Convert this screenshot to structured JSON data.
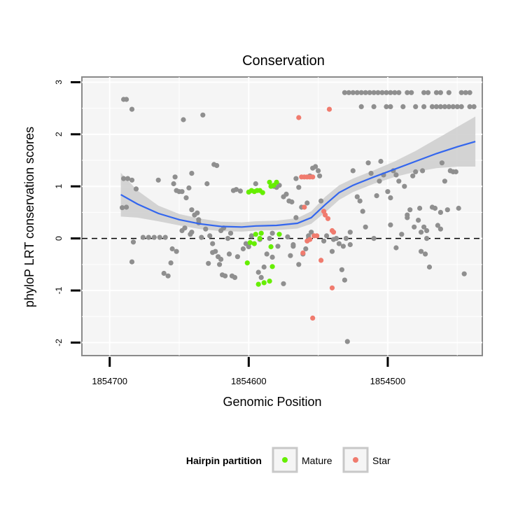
{
  "chart_data": {
    "type": "scatter",
    "title": "Conservation",
    "xlabel": "Genomic Position",
    "ylabel": "phyloP LRT conservation scores",
    "x_reversed": true,
    "xlim": [
      1854720,
      1854432
    ],
    "ylim": [
      -2.25,
      3.1
    ],
    "x_ticks": [
      1854700,
      1854600,
      1854500
    ],
    "y_ticks": [
      -2,
      -1,
      0,
      1,
      2,
      3
    ],
    "reference_line": {
      "y": 0,
      "style": "dashed"
    },
    "grid": true,
    "legend": {
      "title": "Hairpin partition",
      "position": "bottom",
      "entries": [
        {
          "label": "Mature",
          "color": "#66ee00"
        },
        {
          "label": "Star",
          "color": "#f07b6e"
        }
      ]
    },
    "colors": {
      "background": "#f5f5f5",
      "points": "#8f8f8f",
      "smooth": "#3366ee",
      "band": "#cccccc"
    },
    "series": [
      {
        "color": "#8f8f8f",
        "points": [
          [
            1854691,
            0.59
          ],
          [
            1854688,
            0.6
          ],
          [
            1854690,
            1.15
          ],
          [
            1854687,
            1.15
          ],
          [
            1854684,
            1.12
          ],
          [
            1854690,
            2.67
          ],
          [
            1854688,
            2.67
          ],
          [
            1854684,
            2.48
          ],
          [
            1854683,
            -0.07
          ],
          [
            1854684,
            -0.45
          ],
          [
            1854681,
            0.95
          ],
          [
            1854676,
            0.02
          ],
          [
            1854672,
            0.02
          ],
          [
            1854668,
            0.02
          ],
          [
            1854664,
            0.02
          ],
          [
            1854660,
            0.02
          ],
          [
            1854665,
            1.12
          ],
          [
            1854661,
            -0.67
          ],
          [
            1854658,
            -0.72
          ],
          [
            1854654,
            1.05
          ],
          [
            1854653,
            1.18
          ],
          [
            1854652,
            0.92
          ],
          [
            1854650,
            0.9
          ],
          [
            1854648,
            0.9
          ],
          [
            1854656,
            -0.47
          ],
          [
            1854655,
            -0.2
          ],
          [
            1854652,
            -0.25
          ],
          [
            1854648,
            0.15
          ],
          [
            1854646,
            0.2
          ],
          [
            1854645,
            0.78
          ],
          [
            1854643,
            0.97
          ],
          [
            1854641,
            1.25
          ],
          [
            1854641,
            0.55
          ],
          [
            1854639,
            0.45
          ],
          [
            1854637,
            0.49
          ],
          [
            1854636,
            0.36
          ],
          [
            1854647,
            2.28
          ],
          [
            1854641,
            0.12
          ],
          [
            1854642,
            0.08
          ],
          [
            1854636,
            0.3
          ],
          [
            1854633,
            2.37
          ],
          [
            1854630,
            1.05
          ],
          [
            1854628,
            0.05
          ],
          [
            1854626,
            -0.1
          ],
          [
            1854624,
            -0.25
          ],
          [
            1854622,
            -0.35
          ],
          [
            1854621,
            -0.5
          ],
          [
            1854620,
            -0.4
          ],
          [
            1854619,
            -0.7
          ],
          [
            1854617,
            -0.72
          ],
          [
            1854615,
            0.0
          ],
          [
            1854613,
            0.1
          ],
          [
            1854611,
            0.92
          ],
          [
            1854609,
            0.94
          ],
          [
            1854606,
            0.91
          ],
          [
            1854625,
            1.42
          ],
          [
            1854623,
            1.4
          ],
          [
            1854620,
            0.15
          ],
          [
            1854618,
            0.2
          ],
          [
            1854614,
            -0.3
          ],
          [
            1854631,
            0.18
          ],
          [
            1854634,
            0.02
          ],
          [
            1854629,
            -0.48
          ],
          [
            1854626,
            -0.27
          ],
          [
            1854612,
            -0.72
          ],
          [
            1854610,
            -0.75
          ],
          [
            1854608,
            -0.35
          ],
          [
            1854604,
            -0.2
          ],
          [
            1854602,
            -0.1
          ],
          [
            1854598,
            0.05
          ],
          [
            1854595,
            1.05
          ],
          [
            1854593,
            -0.65
          ],
          [
            1854591,
            -0.75
          ],
          [
            1854589,
            -0.55
          ],
          [
            1854587,
            -0.3
          ],
          [
            1854585,
            0.0
          ],
          [
            1854583,
            0.1
          ],
          [
            1854582,
            1.0
          ],
          [
            1854580,
            0.98
          ],
          [
            1854578,
            1.02
          ],
          [
            1854575,
            0.8
          ],
          [
            1854573,
            0.85
          ],
          [
            1854571,
            0.72
          ],
          [
            1854569,
            0.7
          ],
          [
            1854575,
            -0.87
          ],
          [
            1854570,
            -0.33
          ],
          [
            1854568,
            -0.15
          ],
          [
            1854566,
            0.4
          ],
          [
            1854564,
            -0.5
          ],
          [
            1854561,
            -0.3
          ],
          [
            1854559,
            -0.2
          ],
          [
            1854557,
            0.05
          ],
          [
            1854556,
            1.2
          ],
          [
            1854554,
            1.35
          ],
          [
            1854552,
            1.38
          ],
          [
            1854550,
            1.3
          ],
          [
            1854566,
            1.15
          ],
          [
            1854564,
            0.98
          ],
          [
            1854562,
            0.6
          ],
          [
            1854558,
            0.68
          ],
          [
            1854557,
            0.0
          ],
          [
            1854555,
            0.12
          ],
          [
            1854568,
            -0.12
          ],
          [
            1854572,
            0.03
          ],
          [
            1854579,
            -0.15
          ],
          [
            1854583,
            -0.36
          ],
          [
            1854592,
            -0.02
          ],
          [
            1854600,
            -0.16
          ],
          [
            1854549,
            1.2
          ],
          [
            1854548,
            0.72
          ],
          [
            1854546,
            -0.05
          ],
          [
            1854544,
            0.05
          ],
          [
            1854540,
            -0.25
          ],
          [
            1854539,
            -0.02
          ],
          [
            1854537,
            0.0
          ],
          [
            1854535,
            -0.1
          ],
          [
            1854533,
            -0.6
          ],
          [
            1854531,
            -0.8
          ],
          [
            1854530,
            0.0
          ],
          [
            1854529,
            -1.98
          ],
          [
            1854527,
            0.12
          ],
          [
            1854525,
            1.3
          ],
          [
            1854522,
            0.8
          ],
          [
            1854520,
            0.72
          ],
          [
            1854518,
            0.52
          ],
          [
            1854516,
            0.22
          ],
          [
            1854514,
            1.45
          ],
          [
            1854512,
            1.25
          ],
          [
            1854510,
            0.0
          ],
          [
            1854508,
            0.82
          ],
          [
            1854506,
            1.1
          ],
          [
            1854505,
            1.48
          ],
          [
            1854503,
            1.22
          ],
          [
            1854500,
            0.9
          ],
          [
            1854498,
            0.26
          ],
          [
            1854496,
            1.3
          ],
          [
            1854494,
            1.22
          ],
          [
            1854492,
            1.1
          ],
          [
            1854490,
            0.08
          ],
          [
            1854488,
            1.0
          ],
          [
            1854486,
            0.4
          ],
          [
            1854484,
            0.55
          ],
          [
            1854482,
            1.2
          ],
          [
            1854480,
            1.28
          ],
          [
            1854478,
            0.35
          ],
          [
            1854476,
            0.12
          ],
          [
            1854474,
            0.22
          ],
          [
            1854472,
            0.15
          ],
          [
            1854470,
            -0.55
          ],
          [
            1854468,
            0.6
          ],
          [
            1854466,
            0.58
          ],
          [
            1854464,
            0.25
          ],
          [
            1854462,
            0.5
          ],
          [
            1854461,
            1.45
          ],
          [
            1854459,
            1.1
          ],
          [
            1854457,
            0.55
          ],
          [
            1854455,
            1.3
          ],
          [
            1854453,
            1.28
          ],
          [
            1854451,
            1.28
          ],
          [
            1854449,
            0.58
          ],
          [
            1854445,
            -0.68
          ],
          [
            1854527,
            -0.12
          ],
          [
            1854532,
            -0.15
          ],
          [
            1854494,
            -0.18
          ],
          [
            1854476,
            -0.25
          ],
          [
            1854473,
            -0.3
          ],
          [
            1854486,
            0.45
          ],
          [
            1854462,
            0.18
          ],
          [
            1854481,
            0.22
          ],
          [
            1854498,
            0.78
          ],
          [
            1854475,
            1.3
          ],
          [
            1854477,
            0.58
          ],
          [
            1854472,
            0.0
          ],
          [
            1854531,
            2.8
          ],
          [
            1854528,
            2.8
          ],
          [
            1854525,
            2.8
          ],
          [
            1854522,
            2.8
          ],
          [
            1854519,
            2.53
          ],
          [
            1854516,
            2.8
          ],
          [
            1854513,
            2.8
          ],
          [
            1854510,
            2.53
          ],
          [
            1854507,
            2.8
          ],
          [
            1854504,
            2.8
          ],
          [
            1854501,
            2.8
          ],
          [
            1854498,
            2.8
          ],
          [
            1854495,
            2.8
          ],
          [
            1854492,
            2.8
          ],
          [
            1854489,
            2.53
          ],
          [
            1854486,
            2.8
          ],
          [
            1854483,
            2.8
          ],
          [
            1854480,
            2.53
          ],
          [
            1854474,
            2.8
          ],
          [
            1854471,
            2.8
          ],
          [
            1854468,
            2.53
          ],
          [
            1854465,
            2.8
          ],
          [
            1854462,
            2.8
          ],
          [
            1854459,
            2.53
          ],
          [
            1854456,
            2.8
          ],
          [
            1854453,
            2.53
          ],
          [
            1854450,
            2.53
          ],
          [
            1854447,
            2.8
          ],
          [
            1854444,
            2.8
          ],
          [
            1854441,
            2.8
          ],
          [
            1854438,
            2.53
          ],
          [
            1854519,
            2.8
          ],
          [
            1854510,
            2.8
          ],
          [
            1854501,
            2.53
          ],
          [
            1854498,
            2.53
          ],
          [
            1854474,
            2.53
          ],
          [
            1854465,
            2.53
          ],
          [
            1854462,
            2.53
          ],
          [
            1854456,
            2.53
          ],
          [
            1854447,
            2.53
          ],
          [
            1854441,
            2.53
          ]
        ]
      },
      {
        "name": "Mature",
        "color": "#66ee00",
        "points": [
          [
            1854600,
            0.89
          ],
          [
            1854598,
            0.92
          ],
          [
            1854596,
            0.9
          ],
          [
            1854594,
            0.92
          ],
          [
            1854592,
            0.92
          ],
          [
            1854590,
            0.88
          ],
          [
            1854585,
            1.08
          ],
          [
            1854584,
            1.0
          ],
          [
            1854582,
            1.02
          ],
          [
            1854580,
            1.08
          ],
          [
            1854584,
            -0.16
          ],
          [
            1854591,
            0.1
          ],
          [
            1854595,
            0.08
          ],
          [
            1854596,
            -0.1
          ],
          [
            1854599,
            -0.08
          ],
          [
            1854601,
            -0.47
          ],
          [
            1854583,
            -0.54
          ],
          [
            1854585,
            -0.82
          ],
          [
            1854589,
            -0.85
          ],
          [
            1854592,
            0.0
          ],
          [
            1854578,
            0.08
          ],
          [
            1854593,
            -0.88
          ]
        ]
      },
      {
        "name": "Star",
        "color": "#f07b6e",
        "points": [
          [
            1854564,
            2.32
          ],
          [
            1854542,
            2.48
          ],
          [
            1854562,
            1.18
          ],
          [
            1854560,
            1.18
          ],
          [
            1854558,
            1.18
          ],
          [
            1854556,
            1.18
          ],
          [
            1854554,
            1.18
          ],
          [
            1854560,
            0.6
          ],
          [
            1854545,
            0.45
          ],
          [
            1854546,
            0.52
          ],
          [
            1854543,
            0.38
          ],
          [
            1854540,
            0.15
          ],
          [
            1854539,
            0.12
          ],
          [
            1854551,
            0.05
          ],
          [
            1854553,
            0.05
          ],
          [
            1854556,
            -0.02
          ],
          [
            1854558,
            -0.05
          ],
          [
            1854561,
            -0.28
          ],
          [
            1854548,
            -0.42
          ],
          [
            1854540,
            -0.95
          ],
          [
            1854554,
            -1.53
          ]
        ]
      }
    ],
    "smooth_line": {
      "color": "#3366ee",
      "x": [
        1854692,
        1854680,
        1854665,
        1854650,
        1854635,
        1854620,
        1854605,
        1854595,
        1854580,
        1854565,
        1854555,
        1854545,
        1854535,
        1854525,
        1854510,
        1854495,
        1854480,
        1854465,
        1854450,
        1854437
      ],
      "y": [
        0.84,
        0.66,
        0.48,
        0.36,
        0.28,
        0.23,
        0.22,
        0.24,
        0.25,
        0.29,
        0.4,
        0.65,
        0.88,
        1.02,
        1.18,
        1.33,
        1.48,
        1.63,
        1.76,
        1.86
      ],
      "band_half_width": [
        0.42,
        0.26,
        0.15,
        0.11,
        0.1,
        0.09,
        0.09,
        0.09,
        0.09,
        0.1,
        0.12,
        0.15,
        0.14,
        0.13,
        0.13,
        0.15,
        0.2,
        0.28,
        0.38,
        0.48
      ]
    }
  }
}
